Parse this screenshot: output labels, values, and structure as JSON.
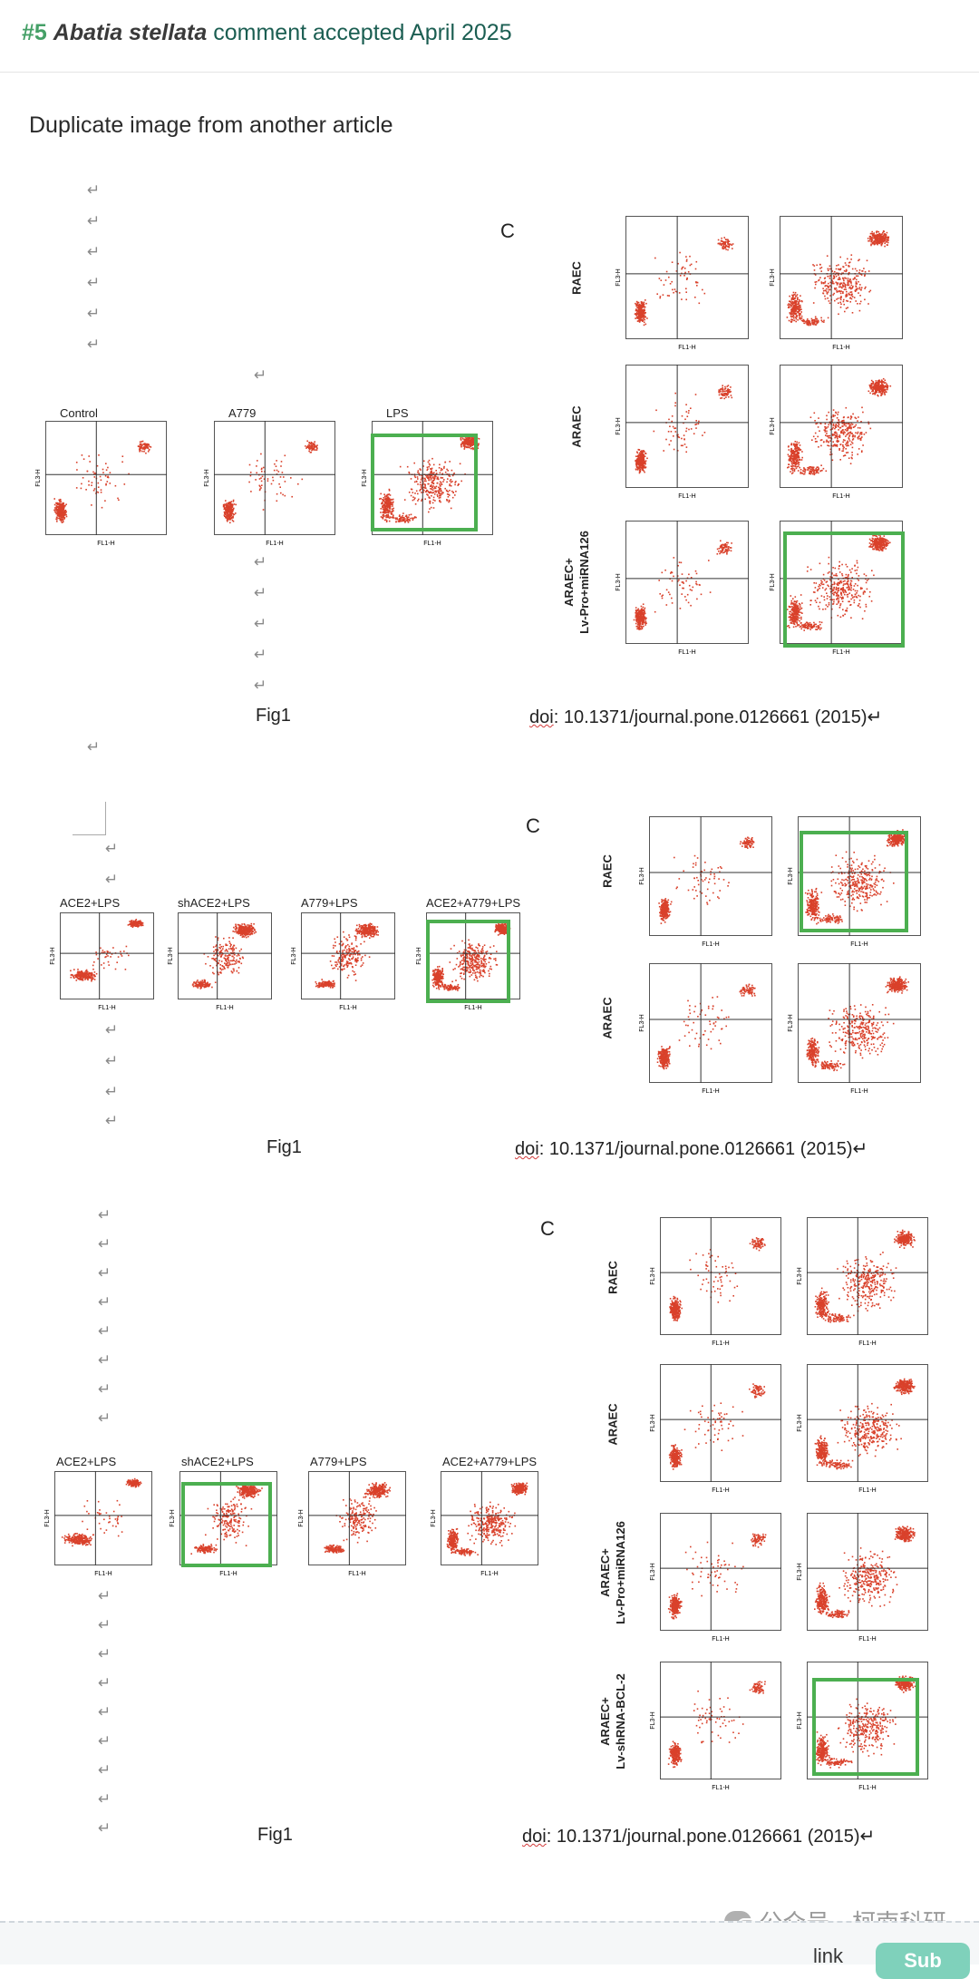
{
  "header": {
    "number": "#5",
    "species": "Abatia stellata",
    "status_text": "comment accepted April 2025"
  },
  "subtitle": "Duplicate image from another article",
  "arrow_glyph": "↵",
  "panel_letter": "C",
  "sections": [
    {
      "left_labels": [
        "Control",
        "A779",
        "LPS"
      ],
      "right_row_labels": [
        "RAEC",
        "ARAEC",
        "ARAEC+\nLv-Pro+miRNA126"
      ],
      "caption": "Fig1",
      "doi_prefix": "doi",
      "doi_rest": ": 10.1371/journal.pone.0126661   (2015)↵"
    },
    {
      "left_labels": [
        "ACE2+LPS",
        "shACE2+LPS",
        "A779+LPS",
        "ACE2+A779+LPS"
      ],
      "right_row_labels": [
        "RAEC",
        "ARAEC"
      ],
      "caption": "Fig1",
      "doi_prefix": "doi",
      "doi_rest": ":  10.1371/journal.pone.0126661   (2015)↵"
    },
    {
      "left_labels": [
        "ACE2+LPS",
        "shACE2+LPS",
        "A779+LPS",
        "ACE2+A779+LPS"
      ],
      "right_row_labels": [
        "RAEC",
        "ARAEC",
        "ARAEC+\nLv-Pro+miRNA126",
        "ARAEC+\nLv-shRNA-BCL-2"
      ],
      "caption": "Fig1",
      "doi_prefix": "doi",
      "doi_rest": ": 10.1371/journal.pone.0126661   (2015)↵"
    }
  ],
  "axis": {
    "x_label": "FL1-H",
    "y_label": "FL3-H"
  },
  "colors": {
    "dots": "#d9412b",
    "highlight": "#4caf50",
    "accent_green": "#45a067",
    "status_teal": "#1b5e52"
  },
  "watermark": "公众号 · 柯南科研",
  "footer": {
    "partial_text": "link",
    "button_label": "Sub"
  }
}
